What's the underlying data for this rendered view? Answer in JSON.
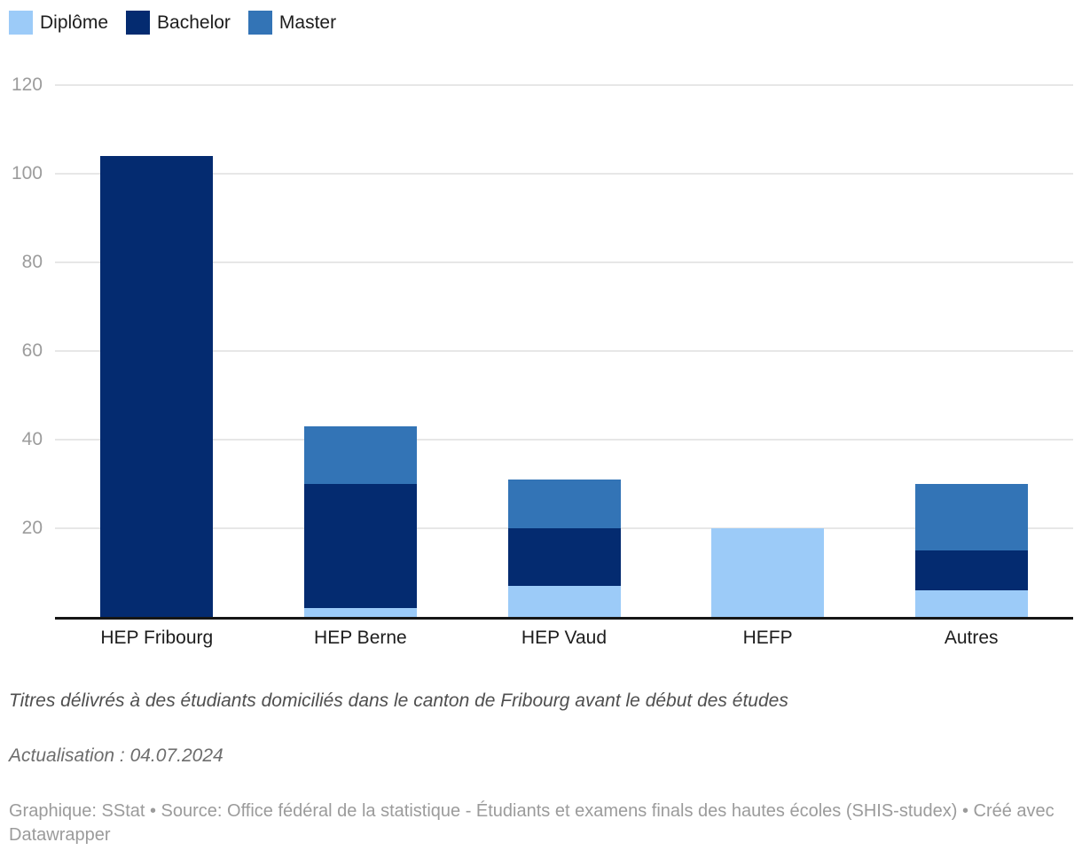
{
  "chart_data": {
    "type": "bar",
    "stacked": true,
    "categories": [
      "HEP Fribourg",
      "HEP Berne",
      "HEP Vaud",
      "HEFP",
      "Autres"
    ],
    "series": [
      {
        "key": "diplome",
        "name": "Diplôme",
        "color": "#9ccbf8",
        "values": [
          0,
          2,
          7,
          20,
          6
        ]
      },
      {
        "key": "bachelor",
        "name": "Bachelor",
        "color": "#042b70",
        "values": [
          104,
          28,
          13,
          0,
          9
        ]
      },
      {
        "key": "master",
        "name": "Master",
        "color": "#3374b6",
        "values": [
          0,
          13,
          11,
          0,
          15
        ]
      }
    ],
    "totals": [
      104,
      43,
      31,
      20,
      30
    ],
    "xlabel": "",
    "ylabel": "",
    "ylim": [
      0,
      120
    ],
    "yticks": [
      20,
      40,
      60,
      80,
      100,
      120
    ],
    "grid": true,
    "legend_position": "top-left",
    "grid_color": "#e7e7e7",
    "axis_color": "#161616",
    "tick_label_color": "#9c9c9c"
  },
  "footer": {
    "description": "Titres délivrés à des étudiants domiciliés dans le canton de Fribourg avant le début des études",
    "update": "Actualisation : 04.07.2024",
    "credits": "Graphique: SStat • Source: Office fédéral de la statistique - Étudiants et examens finals des hautes écoles (SHIS-studex) • Créé avec Datawrapper"
  }
}
